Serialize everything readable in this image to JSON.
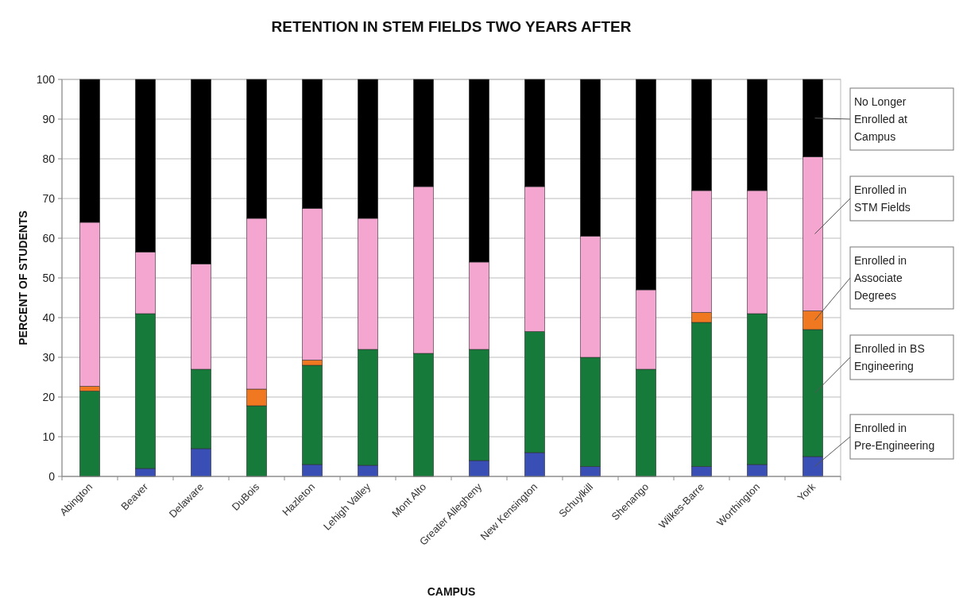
{
  "chart_data": {
    "type": "bar",
    "title": "RETENTION IN STEM FIELDS TWO YEARS AFTER",
    "xlabel": "CAMPUS",
    "ylabel": "PERCENT OF STUDENTS",
    "categories": [
      "Abington",
      "Beaver",
      "Delaware",
      "DuBois",
      "Hazleton",
      "Lehigh Valley",
      "Mont Alto",
      "Greater Allegheny",
      "New Kensington",
      "Schuylkill",
      "Shenango",
      "Wilkes-Barre",
      "Worthington",
      "York"
    ],
    "stacked": true,
    "ylim": [
      0,
      100
    ],
    "yticks": [
      0,
      10,
      20,
      30,
      40,
      50,
      60,
      70,
      80,
      90,
      100
    ],
    "grid": "y",
    "legend": "right",
    "series": [
      {
        "name": "Enrolled in Pre-Engineering",
        "color": "#3a4fb5",
        "values": [
          0,
          2,
          7,
          0,
          3,
          2.8,
          0,
          4,
          6,
          2.5,
          0,
          2.5,
          3,
          5
        ]
      },
      {
        "name": "Enrolled in BS Engineering",
        "color": "#167a3a",
        "values": [
          21.5,
          39,
          20,
          17.8,
          25,
          29.2,
          31,
          28,
          30.5,
          27.5,
          27,
          36.3,
          38,
          32
        ]
      },
      {
        "name": "Enrolled in Associate Degrees",
        "color": "#f07820",
        "values": [
          1.2,
          0,
          0,
          4.2,
          1.3,
          0,
          0,
          0,
          0,
          0,
          0,
          2.5,
          0,
          4.7
        ]
      },
      {
        "name": "Enrolled in STM Fields",
        "color": "#f4a6d0",
        "values": [
          41.3,
          15.5,
          26.5,
          43,
          38.2,
          33,
          42,
          22,
          36.5,
          30.5,
          20,
          30.7,
          31,
          38.8
        ]
      },
      {
        "name": "No Longer Enrolled at Campus",
        "color": "#000000",
        "values": [
          36,
          43.5,
          46.5,
          35,
          32.5,
          35,
          27,
          46,
          27,
          39.5,
          53,
          28,
          28,
          19.5
        ]
      }
    ]
  }
}
